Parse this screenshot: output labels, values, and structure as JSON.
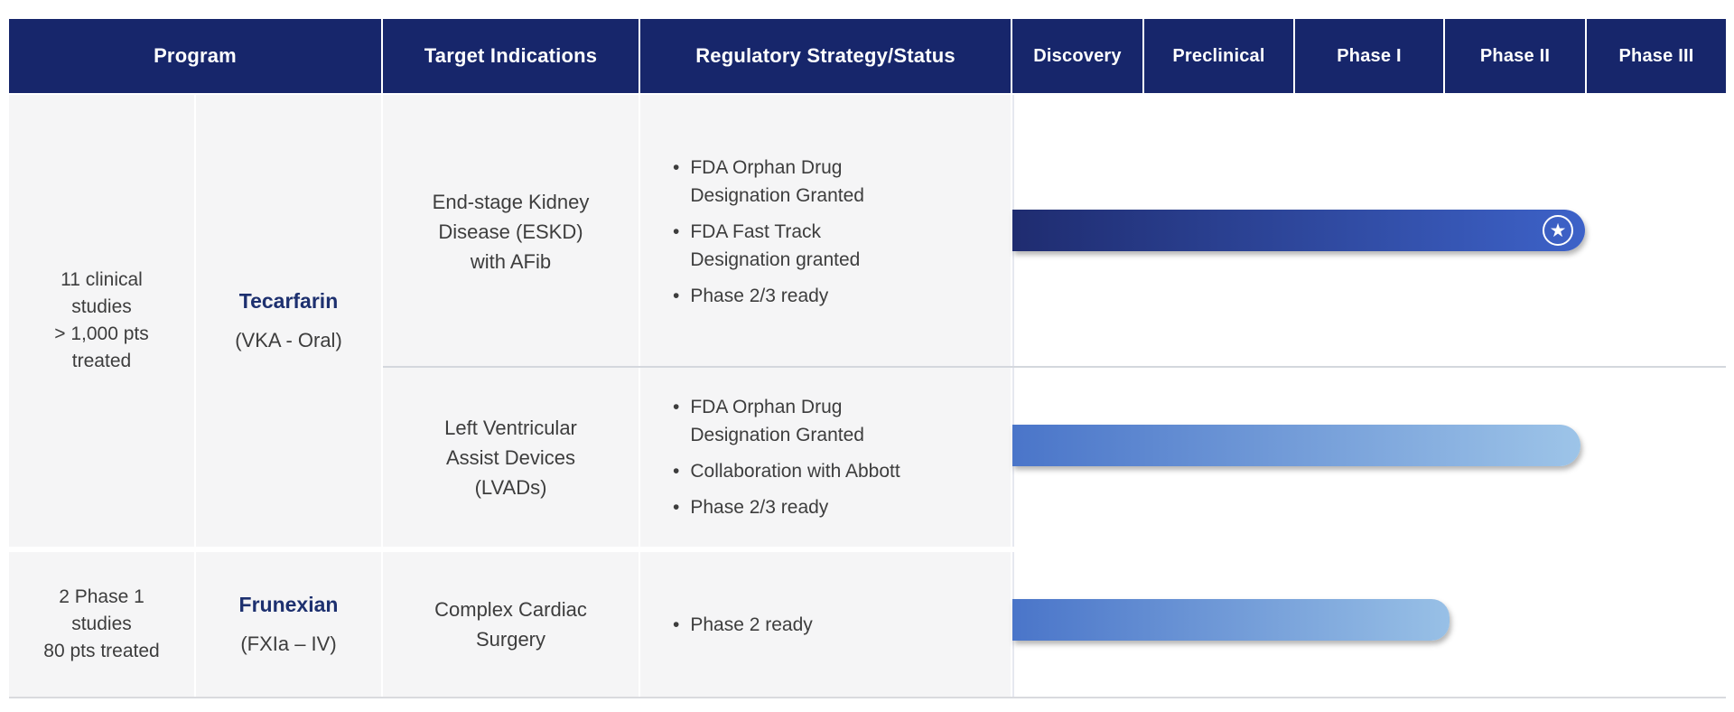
{
  "misc": {
    "bullet_char": "•",
    "star_char": "★"
  },
  "header": {
    "program": "Program",
    "target_indications": "Target Indications",
    "regulatory": "Regulatory Strategy/Status",
    "phases": [
      "Discovery",
      "Preclinical",
      "Phase I",
      "Phase II",
      "Phase III"
    ]
  },
  "programs": [
    {
      "stats": "11 clinical\nstudies\n> 1,000 pts\ntreated",
      "name": "Tecarfarin",
      "mechanism": "(VKA - Oral)",
      "indications": [
        {
          "indication": "End-stage Kidney\nDisease (ESKD)\nwith AFib",
          "bullets": [
            "FDA Orphan Drug\nDesignation Granted",
            "FDA Fast Track\nDesignation granted",
            "Phase 2/3 ready"
          ],
          "progress": {
            "from_phase": "Discovery",
            "through_phase": "Phase II",
            "milestone_star": true,
            "bar_style": "dark-blue-gradient"
          }
        },
        {
          "indication": "Left Ventricular\nAssist Devices\n(LVADs)",
          "bullets": [
            "FDA Orphan Drug\nDesignation Granted",
            "Collaboration with Abbott",
            "Phase 2/3 ready"
          ],
          "progress": {
            "from_phase": "Discovery",
            "through_phase": "Phase II",
            "milestone_star": false,
            "bar_style": "light-blue-gradient"
          }
        }
      ]
    },
    {
      "stats": "2 Phase 1\nstudies\n80 pts treated",
      "name": "Frunexian",
      "mechanism": "(FXIa – IV)",
      "indications": [
        {
          "indication": "Complex Cardiac\nSurgery",
          "bullets": [
            "Phase 2 ready"
          ],
          "progress": {
            "from_phase": "Discovery",
            "through_phase": "Phase I",
            "milestone_star": false,
            "bar_style": "light-blue-gradient"
          }
        }
      ]
    }
  ],
  "colors": {
    "header_bg": "#17266b",
    "cell_bg": "#f5f5f6",
    "body_text": "#3d3d3d",
    "drug_name_text": "#1d306f",
    "bar_dark_start": "#1f2c70",
    "bar_dark_end": "#3d62c8",
    "bar_light_start": "#4a75c9",
    "bar_light_end": "#9dc4e8",
    "sub_divider": "#d4d7dd"
  }
}
